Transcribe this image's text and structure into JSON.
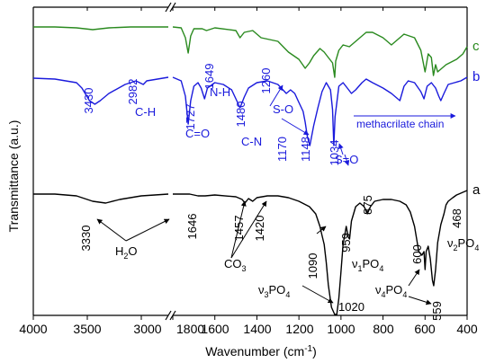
{
  "chart_data": {
    "type": "line",
    "xlabel": "Wavenumber (cm",
    "xlabel_sup": "-1",
    "xlabel_end": ")",
    "ylabel": "Transmittance (a.u.)",
    "x_axis": {
      "segments": [
        {
          "range": [
            4000,
            2750
          ],
          "ticks": [
            4000,
            3500,
            3000
          ]
        },
        {
          "range": [
            1800,
            400
          ],
          "ticks": [
            1800,
            1600,
            1400,
            1200,
            1000,
            800,
            600,
            400
          ]
        }
      ],
      "break_between": [
        2750,
        1800
      ],
      "reversed": true
    },
    "y_ticks_shown": false,
    "series": [
      {
        "name": "c",
        "color": "#2a8a1f",
        "points": [
          [
            4000,
            18
          ],
          [
            3800,
            18
          ],
          [
            3600,
            19
          ],
          [
            3450,
            21
          ],
          [
            3300,
            19
          ],
          [
            3100,
            18
          ],
          [
            2750,
            18
          ],
          [
            1800,
            18
          ],
          [
            1760,
            19
          ],
          [
            1740,
            30
          ],
          [
            1727,
            47
          ],
          [
            1715,
            28
          ],
          [
            1700,
            20
          ],
          [
            1660,
            20
          ],
          [
            1640,
            22
          ],
          [
            1600,
            19
          ],
          [
            1500,
            22
          ],
          [
            1480,
            30
          ],
          [
            1460,
            24
          ],
          [
            1420,
            22
          ],
          [
            1380,
            30
          ],
          [
            1300,
            34
          ],
          [
            1250,
            46
          ],
          [
            1200,
            54
          ],
          [
            1170,
            64
          ],
          [
            1150,
            58
          ],
          [
            1130,
            50
          ],
          [
            1100,
            42
          ],
          [
            1080,
            46
          ],
          [
            1060,
            52
          ],
          [
            1040,
            58
          ],
          [
            1030,
            74
          ],
          [
            1025,
            56
          ],
          [
            1010,
            44
          ],
          [
            990,
            38
          ],
          [
            960,
            40
          ],
          [
            940,
            36
          ],
          [
            900,
            28
          ],
          [
            880,
            24
          ],
          [
            850,
            24
          ],
          [
            800,
            30
          ],
          [
            760,
            38
          ],
          [
            700,
            26
          ],
          [
            650,
            30
          ],
          [
            620,
            44
          ],
          [
            600,
            68
          ],
          [
            585,
            48
          ],
          [
            570,
            52
          ],
          [
            560,
            72
          ],
          [
            550,
            60
          ],
          [
            540,
            68
          ],
          [
            500,
            60
          ],
          [
            450,
            54
          ],
          [
            420,
            48
          ],
          [
            400,
            40
          ]
        ],
        "label": "c"
      },
      {
        "name": "b",
        "color": "#1a1adc",
        "points": [
          [
            4000,
            75
          ],
          [
            3800,
            76
          ],
          [
            3600,
            80
          ],
          [
            3550,
            86
          ],
          [
            3480,
            100
          ],
          [
            3430,
            104
          ],
          [
            3380,
            100
          ],
          [
            3300,
            92
          ],
          [
            3150,
            82
          ],
          [
            3050,
            78
          ],
          [
            2982,
            82
          ],
          [
            2950,
            78
          ],
          [
            2750,
            74
          ],
          [
            1800,
            74
          ],
          [
            1760,
            78
          ],
          [
            1740,
            95
          ],
          [
            1727,
            126
          ],
          [
            1715,
            100
          ],
          [
            1700,
            84
          ],
          [
            1680,
            80
          ],
          [
            1665,
            86
          ],
          [
            1649,
            98
          ],
          [
            1635,
            86
          ],
          [
            1600,
            80
          ],
          [
            1560,
            82
          ],
          [
            1520,
            88
          ],
          [
            1500,
            98
          ],
          [
            1480,
            108
          ],
          [
            1460,
            96
          ],
          [
            1440,
            86
          ],
          [
            1400,
            80
          ],
          [
            1350,
            78
          ],
          [
            1300,
            82
          ],
          [
            1260,
            92
          ],
          [
            1240,
            88
          ],
          [
            1220,
            92
          ],
          [
            1200,
            102
          ],
          [
            1180,
            112
          ],
          [
            1170,
            124
          ],
          [
            1160,
            140
          ],
          [
            1148,
            150
          ],
          [
            1130,
            128
          ],
          [
            1110,
            108
          ],
          [
            1090,
            90
          ],
          [
            1070,
            80
          ],
          [
            1050,
            88
          ],
          [
            1040,
            110
          ],
          [
            1034,
            150
          ],
          [
            1028,
            118
          ],
          [
            1010,
            84
          ],
          [
            990,
            80
          ],
          [
            970,
            86
          ],
          [
            950,
            92
          ],
          [
            930,
            88
          ],
          [
            900,
            80
          ],
          [
            880,
            76
          ],
          [
            850,
            80
          ],
          [
            800,
            86
          ],
          [
            760,
            92
          ],
          [
            720,
            100
          ],
          [
            700,
            84
          ],
          [
            680,
            78
          ],
          [
            650,
            80
          ],
          [
            620,
            90
          ],
          [
            605,
            98
          ],
          [
            590,
            84
          ],
          [
            570,
            80
          ],
          [
            550,
            86
          ],
          [
            535,
            95
          ],
          [
            525,
            100
          ],
          [
            510,
            92
          ],
          [
            490,
            82
          ],
          [
            460,
            80
          ],
          [
            430,
            78
          ],
          [
            400,
            74
          ]
        ],
        "label": "b"
      },
      {
        "name": "a",
        "color": "#000000",
        "points": [
          [
            4000,
            204
          ],
          [
            3800,
            204
          ],
          [
            3600,
            206
          ],
          [
            3450,
            212
          ],
          [
            3330,
            214
          ],
          [
            3200,
            210
          ],
          [
            3000,
            206
          ],
          [
            2750,
            204
          ],
          [
            1800,
            204
          ],
          [
            1720,
            204
          ],
          [
            1680,
            206
          ],
          [
            1646,
            206
          ],
          [
            1600,
            205
          ],
          [
            1500,
            207
          ],
          [
            1470,
            210
          ],
          [
            1457,
            214
          ],
          [
            1440,
            209
          ],
          [
            1420,
            212
          ],
          [
            1400,
            208
          ],
          [
            1350,
            206
          ],
          [
            1300,
            206
          ],
          [
            1250,
            208
          ],
          [
            1200,
            212
          ],
          [
            1150,
            218
          ],
          [
            1120,
            226
          ],
          [
            1100,
            240
          ],
          [
            1090,
            250
          ],
          [
            1080,
            260
          ],
          [
            1070,
            280
          ],
          [
            1060,
            305
          ],
          [
            1045,
            330
          ],
          [
            1030,
            338
          ],
          [
            1020,
            338
          ],
          [
            1010,
            320
          ],
          [
            1000,
            290
          ],
          [
            990,
            260
          ],
          [
            975,
            240
          ],
          [
            965,
            252
          ],
          [
            959,
            254
          ],
          [
            950,
            234
          ],
          [
            930,
            218
          ],
          [
            910,
            214
          ],
          [
            890,
            218
          ],
          [
            875,
            226
          ],
          [
            860,
            218
          ],
          [
            840,
            212
          ],
          [
            800,
            210
          ],
          [
            760,
            210
          ],
          [
            720,
            212
          ],
          [
            690,
            216
          ],
          [
            670,
            224
          ],
          [
            650,
            240
          ],
          [
            630,
            268
          ],
          [
            615,
            272
          ],
          [
            605,
            268
          ],
          [
            600,
            288
          ],
          [
            595,
            268
          ],
          [
            585,
            262
          ],
          [
            575,
            276
          ],
          [
            565,
            300
          ],
          [
            559,
            306
          ],
          [
            550,
            288
          ],
          [
            540,
            258
          ],
          [
            525,
            238
          ],
          [
            510,
            226
          ],
          [
            500,
            216
          ],
          [
            490,
            212
          ],
          [
            468,
            208
          ],
          [
            450,
            205
          ],
          [
            420,
            202
          ],
          [
            400,
            200
          ]
        ],
        "label": "a"
      }
    ],
    "annotations": [
      {
        "text": "3430",
        "color": "#1a1adc"
      },
      {
        "text": "2982",
        "color": "#1a1adc"
      },
      {
        "text": "C-H",
        "color": "#1a1adc"
      },
      {
        "text": "C=O",
        "color": "#1a1adc"
      },
      {
        "text": "1727",
        "color": "#1a1adc"
      },
      {
        "text": "N-H",
        "color": "#1a1adc"
      },
      {
        "text": "1649",
        "color": "#1a1adc"
      },
      {
        "text": "1480",
        "color": "#1a1adc"
      },
      {
        "text": "C-N",
        "color": "#1a1adc"
      },
      {
        "text": "1260",
        "color": "#1a1adc"
      },
      {
        "text": "S-O",
        "color": "#1a1adc"
      },
      {
        "text": "1170",
        "color": "#1a1adc"
      },
      {
        "text": "1148",
        "color": "#1a1adc"
      },
      {
        "text": "1034",
        "color": "#1a1adc"
      },
      {
        "text": "S=O",
        "color": "#1a1adc"
      },
      {
        "text": "methacrilate chain",
        "color": "#1a1adc"
      },
      {
        "text": "3330",
        "color": "#000000"
      },
      {
        "text": "1646",
        "color": "#000000"
      },
      {
        "text": "1457",
        "color": "#000000"
      },
      {
        "text": "1420",
        "color": "#000000"
      },
      {
        "text": "1090",
        "color": "#000000"
      },
      {
        "text": "959",
        "color": "#000000"
      },
      {
        "text": "875",
        "color": "#000000"
      },
      {
        "text": "600",
        "color": "#000000"
      },
      {
        "text": "468",
        "color": "#000000"
      },
      {
        "text": "1020",
        "color": "#000000"
      },
      {
        "text": "559",
        "color": "#000000"
      }
    ],
    "group_labels": [
      {
        "main": "H",
        "sub": "2",
        "after": "O"
      },
      {
        "main": "CO",
        "sub": "3",
        "after": ""
      },
      {
        "main": "ν",
        "sub": "3",
        "after": "PO",
        "sub2": "4"
      },
      {
        "main": "ν",
        "sub": "1",
        "after": "PO",
        "sub2": "4"
      },
      {
        "main": "ν",
        "sub": "4",
        "after": "PO",
        "sub2": "4"
      },
      {
        "main": "ν",
        "sub": "2",
        "after": "PO",
        "sub2": "4"
      }
    ]
  }
}
